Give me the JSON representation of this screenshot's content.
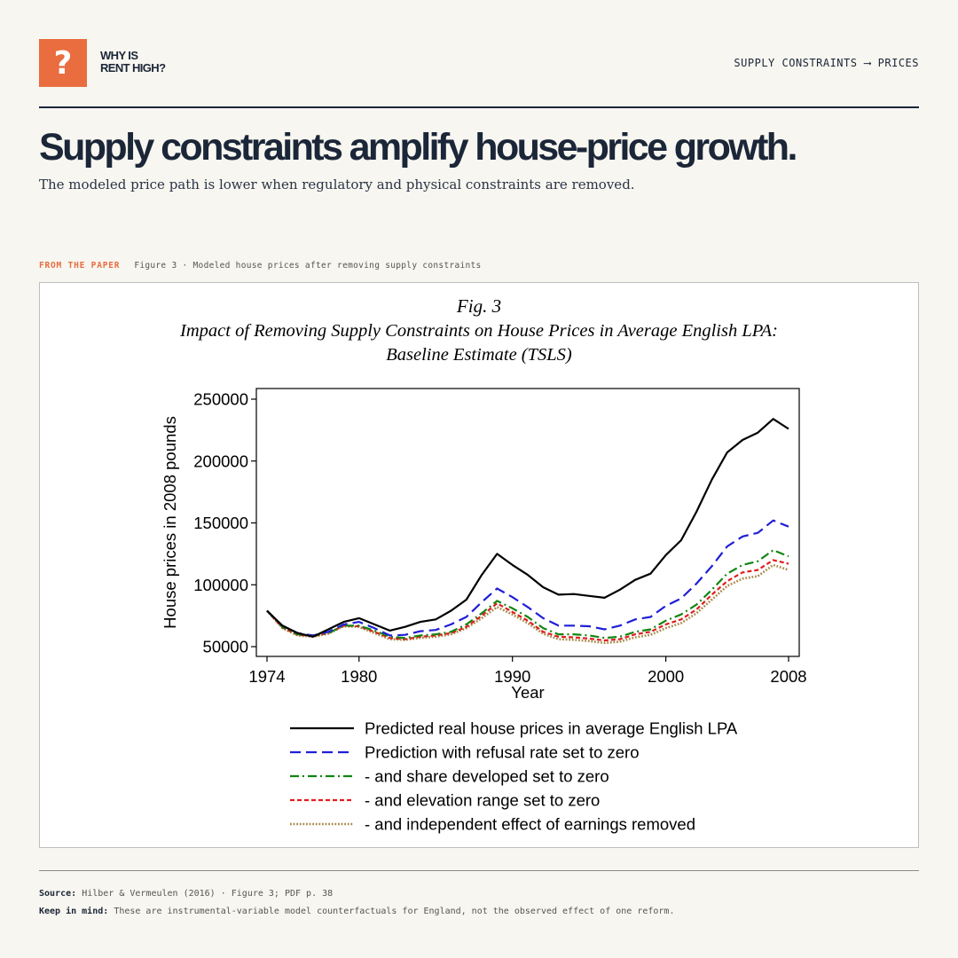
{
  "header": {
    "logo_glyph": "?",
    "logo_text": "WHY IS\nRENT HIGH?",
    "tag": "SUPPLY CONSTRAINTS ⟶ PRICES"
  },
  "headline": "Supply constraints amplify house-price growth.",
  "subhead": "The modeled price path is lower when regulatory and physical constraints are removed.",
  "figure_caption": {
    "kicker": "FROM THE PAPER",
    "text": "Figure 3 · Modeled house prices after removing supply constraints"
  },
  "footer": {
    "source_label": "Source:",
    "source_text": "Hilber & Vermeulen (2016) · Figure 3; PDF p. 38",
    "keep_label": "Keep in mind:",
    "keep_text": "These are instrumental-variable model counterfactuals for England, not the observed effect of one reform."
  },
  "chart_data": {
    "type": "line",
    "title_lines": [
      "Fig. 3",
      "Impact of Removing Supply Constraints on House Prices in Average English LPA:",
      "Baseline Estimate (TSLS)"
    ],
    "xlabel": "Year",
    "ylabel": "House prices in 2008 pounds",
    "xlim": [
      1974,
      2008
    ],
    "ylim": [
      45000,
      260000
    ],
    "xticks": [
      1974,
      1980,
      1990,
      2000,
      2008
    ],
    "yticks": [
      50000,
      100000,
      150000,
      200000,
      250000
    ],
    "grid": false,
    "legend_position": "bottom",
    "x": [
      1974,
      1975,
      1976,
      1977,
      1978,
      1979,
      1980,
      1981,
      1982,
      1983,
      1984,
      1985,
      1986,
      1987,
      1988,
      1989,
      1990,
      1991,
      1992,
      1993,
      1994,
      1995,
      1996,
      1997,
      1998,
      1999,
      2000,
      2001,
      2002,
      2003,
      2004,
      2005,
      2006,
      2007,
      2008
    ],
    "series": [
      {
        "name": "Predicted real house prices in average English LPA",
        "color": "#000000",
        "dash": "solid",
        "values": [
          79000,
          67000,
          61000,
          58000,
          64000,
          70000,
          73000,
          68000,
          63000,
          66000,
          70000,
          72000,
          79000,
          88000,
          108000,
          125000,
          116000,
          108000,
          98000,
          92000,
          92500,
          91000,
          89500,
          96000,
          104000,
          109000,
          124000,
          136000,
          159000,
          185000,
          207000,
          217000,
          223000,
          234000,
          226000
        ]
      },
      {
        "name": "Prediction with refusal rate set to zero",
        "color": "#1f1fd6",
        "dash": "dashed",
        "values": [
          79000,
          67000,
          61000,
          59000,
          62000,
          68000,
          70000,
          65000,
          59000,
          59500,
          62500,
          63500,
          68000,
          74000,
          86000,
          97000,
          90000,
          82000,
          73000,
          67000,
          67000,
          66500,
          64000,
          67000,
          72000,
          74000,
          83000,
          89000,
          101000,
          115000,
          131000,
          139000,
          142000,
          152000,
          147000
        ]
      },
      {
        "name": "- and share developed set to zero",
        "color": "#128512",
        "dash": "dashdot",
        "values": [
          79000,
          66000,
          60000,
          59000,
          61000,
          67000,
          67000,
          63000,
          58000,
          57000,
          59000,
          60000,
          62000,
          68000,
          77000,
          87000,
          81000,
          74000,
          65000,
          60000,
          60000,
          59000,
          57000,
          58000,
          62000,
          64000,
          71000,
          76000,
          84000,
          96000,
          109000,
          116000,
          119000,
          128000,
          123000
        ]
      },
      {
        "name": "- and elevation range set to zero",
        "color": "#e01e1e",
        "dash": "shortdash",
        "values": [
          79000,
          65500,
          59500,
          58500,
          61000,
          67000,
          66500,
          62000,
          57000,
          56000,
          58000,
          59000,
          61000,
          66000,
          75000,
          85000,
          78000,
          71000,
          62000,
          58000,
          57500,
          56500,
          55000,
          56000,
          60000,
          62000,
          68000,
          72000,
          80000,
          92000,
          103000,
          110000,
          112000,
          120000,
          117000
        ]
      },
      {
        "name": "- and independent effect of earnings removed",
        "color": "#a88a4c",
        "dash": "dotted",
        "values": [
          79000,
          65000,
          59000,
          58000,
          60500,
          66500,
          66000,
          61000,
          56000,
          55500,
          57000,
          58000,
          60000,
          65000,
          73000,
          82000,
          76000,
          69000,
          60500,
          56000,
          55500,
          54500,
          53000,
          54000,
          57500,
          59500,
          65000,
          69000,
          77000,
          88000,
          99000,
          105000,
          107000,
          116000,
          112000
        ]
      }
    ]
  }
}
